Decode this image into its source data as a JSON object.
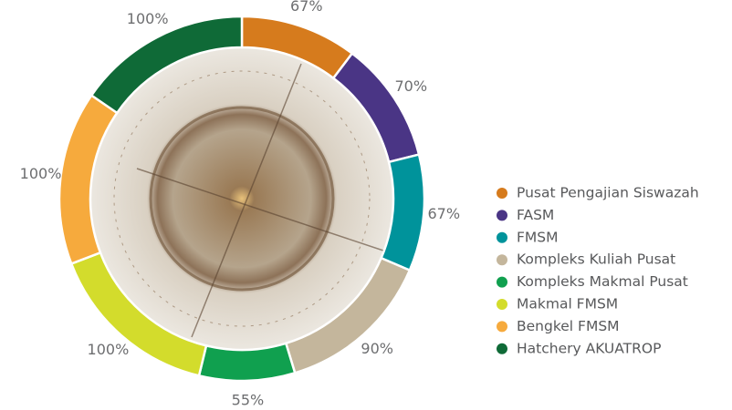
{
  "chart_data": {
    "type": "pie",
    "categories": [
      "Pusat Pengajian Siswazah",
      "FASM",
      "FMSM",
      "Kompleks Kuliah Pusat",
      "Kompleks Makmal Pusat",
      "Makmal FMSM",
      "Bengkel FMSM",
      "Hatchery AKUATROP"
    ],
    "values": [
      67,
      70,
      67,
      90,
      55,
      100,
      100,
      100
    ],
    "value_labels": [
      "67%",
      "70%",
      "67%",
      "90%",
      "55%",
      "100%",
      "100%",
      "100%"
    ],
    "colors": [
      "#d67b1d",
      "#4a3585",
      "#00939b",
      "#c4b69c",
      "#10a04f",
      "#d3dc2c",
      "#f6aa3d",
      "#0f6a37"
    ],
    "legend": "right"
  }
}
